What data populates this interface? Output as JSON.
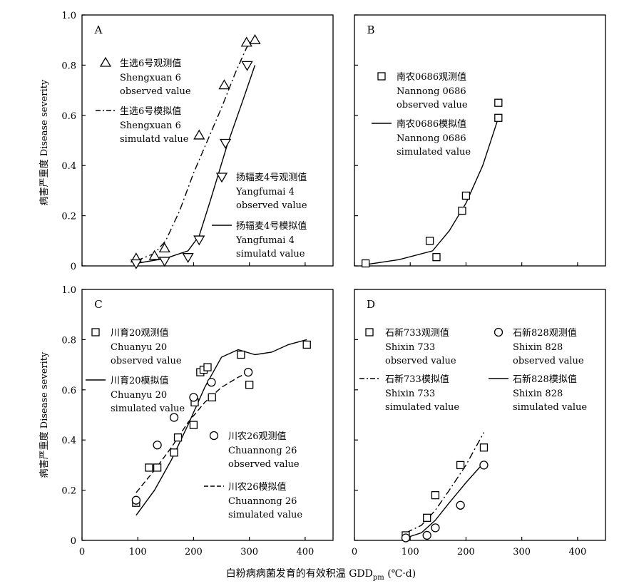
{
  "figure": {
    "ylabel": "病害严重度 Disease severity",
    "xlabel_main": "白粉病病菌发育的有效积温 GDD",
    "xlabel_sub": "pm",
    "xlabel_unit": " (℃·d)",
    "x_ticks": [
      "0",
      "100",
      "200",
      "300",
      "400"
    ],
    "y_ticks": [
      "0",
      "0.2",
      "0.4",
      "0.6",
      "0.8",
      "1.0"
    ]
  },
  "chart_data": [
    {
      "type": "scatter",
      "panel": "A",
      "xlim": [
        0,
        450
      ],
      "ylim": [
        0,
        1.0
      ],
      "series": [
        {
          "name": "生选6号观测值 Shengxuan 6 observed value",
          "kind": "points",
          "marker": "triangle-up",
          "x": [
            97,
            130,
            148,
            210,
            255,
            295,
            310
          ],
          "y": [
            0.03,
            0.04,
            0.07,
            0.52,
            0.72,
            0.89,
            0.9
          ]
        },
        {
          "name": "生选6号模拟值 Shengxuan 6 simulatd value",
          "kind": "line",
          "dash": "dashdot",
          "x": [
            97,
            130,
            150,
            175,
            200,
            225,
            250,
            275,
            295,
            310
          ],
          "y": [
            0.02,
            0.05,
            0.1,
            0.22,
            0.37,
            0.5,
            0.63,
            0.77,
            0.87,
            0.91
          ]
        },
        {
          "name": "扬辐麦4号观测值 Yangfumai 4 observed value",
          "kind": "points",
          "marker": "triangle-down",
          "x": [
            97,
            148,
            190,
            210,
            257,
            296
          ],
          "y": [
            0.01,
            0.02,
            0.035,
            0.105,
            0.49,
            0.8
          ]
        },
        {
          "name": "扬辐麦4号模拟值 Yangfumai 4 simulatd value",
          "kind": "line",
          "dash": "solid",
          "x": [
            97,
            150,
            190,
            210,
            230,
            260,
            290,
            310
          ],
          "y": [
            0.01,
            0.03,
            0.06,
            0.12,
            0.26,
            0.48,
            0.67,
            0.8
          ]
        }
      ],
      "legend": [
        {
          "marker": "triangle-up",
          "zh": "生选6号观测值",
          "en1": "Shengxuan 6",
          "en2": "observed value"
        },
        {
          "marker": "dashdot",
          "zh": "生选6号模拟值",
          "en1": "Shengxuan 6",
          "en2": "simulatd value"
        },
        {
          "marker": "triangle-down",
          "zh": "扬辐麦4号观测值",
          "en1": "Yangfumai 4",
          "en2": "observed value"
        },
        {
          "marker": "solid",
          "zh": "扬辐麦4号模拟值",
          "en1": "Yangfumai 4",
          "en2": "simulatd value"
        }
      ]
    },
    {
      "type": "scatter",
      "panel": "B",
      "xlim": [
        0,
        450
      ],
      "ylim": [
        0,
        1.0
      ],
      "series": [
        {
          "name": "南农0686观测值 Nannong 0686 observed value",
          "kind": "points",
          "marker": "square",
          "x": [
            20,
            135,
            147,
            193,
            200,
            258,
            258
          ],
          "y": [
            0.01,
            0.1,
            0.035,
            0.22,
            0.28,
            0.65,
            0.59
          ]
        },
        {
          "name": "南农0686模拟值 Nannong 0686 simulated value",
          "kind": "line",
          "dash": "solid",
          "x": [
            20,
            80,
            140,
            170,
            200,
            230,
            258
          ],
          "y": [
            0.005,
            0.025,
            0.06,
            0.14,
            0.25,
            0.4,
            0.59
          ]
        }
      ],
      "legend": [
        {
          "marker": "square",
          "zh": "南农0686观测值",
          "en1": "Nannong 0686",
          "en2": "observed value"
        },
        {
          "marker": "solid",
          "zh": "南农0686模拟值",
          "en1": "Nannong 0686",
          "en2": "simulated value"
        }
      ]
    },
    {
      "type": "scatter",
      "panel": "C",
      "xlim": [
        0,
        450
      ],
      "ylim": [
        0,
        1.0
      ],
      "series": [
        {
          "name": "川育20观测值 Chuanyu 20 observed value",
          "kind": "points",
          "marker": "square",
          "x": [
            97,
            120,
            135,
            165,
            172,
            200,
            202,
            212,
            218,
            225,
            233,
            285,
            300,
            403
          ],
          "y": [
            0.15,
            0.29,
            0.29,
            0.35,
            0.41,
            0.46,
            0.55,
            0.67,
            0.68,
            0.69,
            0.57,
            0.74,
            0.62,
            0.78
          ]
        },
        {
          "name": "川育20模拟值 Chuanyu 20 simulated value",
          "kind": "line",
          "dash": "solid",
          "x": [
            97,
            130,
            160,
            190,
            220,
            250,
            280,
            310,
            340,
            370,
            403
          ],
          "y": [
            0.1,
            0.2,
            0.32,
            0.46,
            0.61,
            0.73,
            0.76,
            0.74,
            0.75,
            0.78,
            0.8
          ]
        },
        {
          "name": "川农26观测值 Chuannong 26 observed value",
          "kind": "points",
          "marker": "circle",
          "x": [
            97,
            135,
            165,
            200,
            232,
            298
          ],
          "y": [
            0.16,
            0.38,
            0.49,
            0.57,
            0.63,
            0.67
          ]
        },
        {
          "name": "川农26模拟值 Chuannong 26 simulated value",
          "kind": "line",
          "dash": "dash",
          "x": [
            97,
            130,
            160,
            190,
            220,
            250,
            280,
            298
          ],
          "y": [
            0.19,
            0.28,
            0.37,
            0.47,
            0.55,
            0.61,
            0.65,
            0.67
          ]
        }
      ],
      "legend": [
        {
          "marker": "square",
          "zh": "川育20观测值",
          "en1": "Chuanyu 20",
          "en2": "observed value"
        },
        {
          "marker": "solid",
          "zh": "川育20模拟值",
          "en1": "Chuanyu 20",
          "en2": "simulated value"
        },
        {
          "marker": "circle",
          "zh": "川农26观测值",
          "en1": "Chuannong 26",
          "en2": "observed value"
        },
        {
          "marker": "dash",
          "zh": "川农26模拟值",
          "en1": "Chuannong 26",
          "en2": "simulated value"
        }
      ]
    },
    {
      "type": "scatter",
      "panel": "D",
      "xlim": [
        0,
        450
      ],
      "ylim": [
        0,
        1.0
      ],
      "series": [
        {
          "name": "石新733观测值 Shixin 733 observed value",
          "kind": "points",
          "marker": "square",
          "x": [
            92,
            130,
            145,
            190,
            232
          ],
          "y": [
            0.02,
            0.09,
            0.18,
            0.3,
            0.37
          ]
        },
        {
          "name": "石新733模拟值 Shixin 733 simulated value",
          "kind": "line",
          "dash": "dashdot",
          "x": [
            92,
            120,
            145,
            170,
            200,
            232
          ],
          "y": [
            0.03,
            0.06,
            0.12,
            0.2,
            0.3,
            0.43
          ]
        },
        {
          "name": "石新828观测值 Shixin 828 observed value",
          "kind": "points",
          "marker": "circle",
          "x": [
            92,
            130,
            145,
            190,
            232
          ],
          "y": [
            0.01,
            0.02,
            0.05,
            0.14,
            0.3
          ]
        },
        {
          "name": "石新828模拟值 Shixin 828 simulated value",
          "kind": "line",
          "dash": "solid",
          "x": [
            92,
            120,
            145,
            170,
            200,
            232
          ],
          "y": [
            0.01,
            0.03,
            0.08,
            0.15,
            0.23,
            0.31
          ]
        }
      ],
      "legend": [
        {
          "marker": "square",
          "zh": "石新733观测值",
          "en1": "Shixin 733",
          "en2": "observed value"
        },
        {
          "marker": "dashdot",
          "zh": "石新733模拟值",
          "en1": "Shixin 733",
          "en2": "simulated value"
        },
        {
          "marker": "circle",
          "zh": "石新828观测值",
          "en1": "Shixin 828",
          "en2": "observed value"
        },
        {
          "marker": "solid",
          "zh": "石新828模拟值",
          "en1": "Shixin 828",
          "en2": "simulated value"
        }
      ]
    }
  ]
}
